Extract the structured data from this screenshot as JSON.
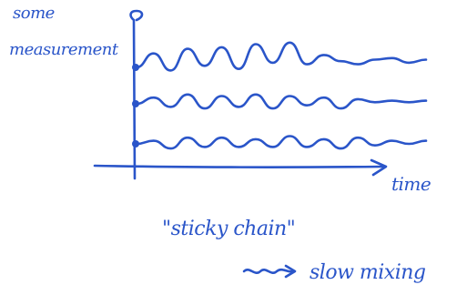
{
  "chart_data": {
    "type": "line",
    "ylabel": "some measurement",
    "xlabel": "time",
    "annotations": [
      "\"sticky chain\"",
      "slow mixing"
    ],
    "grid": false,
    "series": [
      {
        "values": [
          0.0,
          0.09,
          -0.02,
          0.12,
          0.01,
          0.13,
          -0.01,
          0.15,
          0.03,
          0.16,
          0.02,
          0.08,
          0.04,
          0.02,
          0.05,
          0.06,
          0.03,
          0.05
        ]
      },
      {
        "values": [
          0.0,
          0.04,
          -0.02,
          0.06,
          -0.03,
          0.05,
          -0.02,
          0.06,
          -0.03,
          0.05,
          -0.01,
          0.04,
          -0.03,
          0.03,
          0.01,
          0.02,
          0.01,
          0.02
        ]
      },
      {
        "values": [
          0.0,
          0.02,
          -0.03,
          0.04,
          -0.02,
          0.04,
          -0.02,
          0.03,
          -0.02,
          0.05,
          -0.02,
          0.03,
          -0.03,
          0.04,
          -0.01,
          0.02,
          0.0,
          0.02
        ]
      }
    ],
    "colors": {
      "ink": "#2a55c9"
    }
  }
}
